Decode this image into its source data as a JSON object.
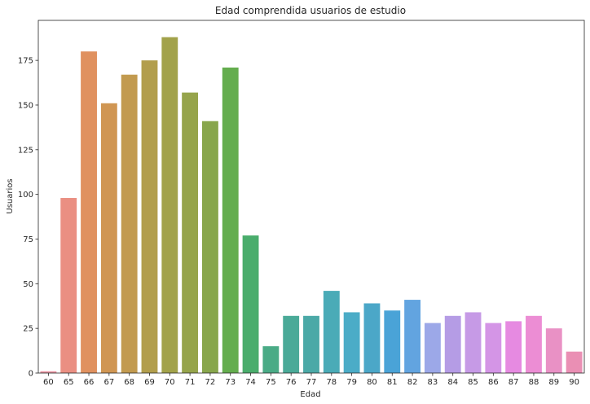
{
  "chart_data": {
    "type": "bar",
    "title": "Edad comprendida usuarios de estudio",
    "xlabel": "Edad",
    "ylabel": "Usuarios",
    "categories": [
      "60",
      "65",
      "66",
      "67",
      "68",
      "69",
      "70",
      "71",
      "72",
      "73",
      "74",
      "75",
      "76",
      "77",
      "78",
      "79",
      "80",
      "81",
      "82",
      "83",
      "84",
      "85",
      "86",
      "87",
      "88",
      "89",
      "90"
    ],
    "values": [
      1,
      98,
      180,
      151,
      167,
      175,
      188,
      157,
      141,
      171,
      77,
      15,
      32,
      32,
      46,
      34,
      39,
      35,
      41,
      28,
      32,
      34,
      28,
      29,
      32,
      25,
      12
    ],
    "colors": [
      "#ea96a3",
      "#ea8f82",
      "#e0915f",
      "#d09653",
      "#c29a4f",
      "#b29e4c",
      "#a2a24a",
      "#96a44b",
      "#88a64c",
      "#64ad4e",
      "#4aad6c",
      "#4aab86",
      "#4aaa98",
      "#4ba9a7",
      "#4aabb7",
      "#4bacc7",
      "#4ba7c8",
      "#4aa3d7",
      "#62a4e0",
      "#9ca8e8",
      "#b59ce5",
      "#c69ae6",
      "#d495e6",
      "#e68ae1",
      "#ec8dd4",
      "#e991c5",
      "#ea8fb4"
    ],
    "yticks": [
      0,
      25,
      50,
      75,
      100,
      125,
      150,
      175
    ],
    "ylim": [
      0,
      197.4
    ],
    "grid": false
  }
}
